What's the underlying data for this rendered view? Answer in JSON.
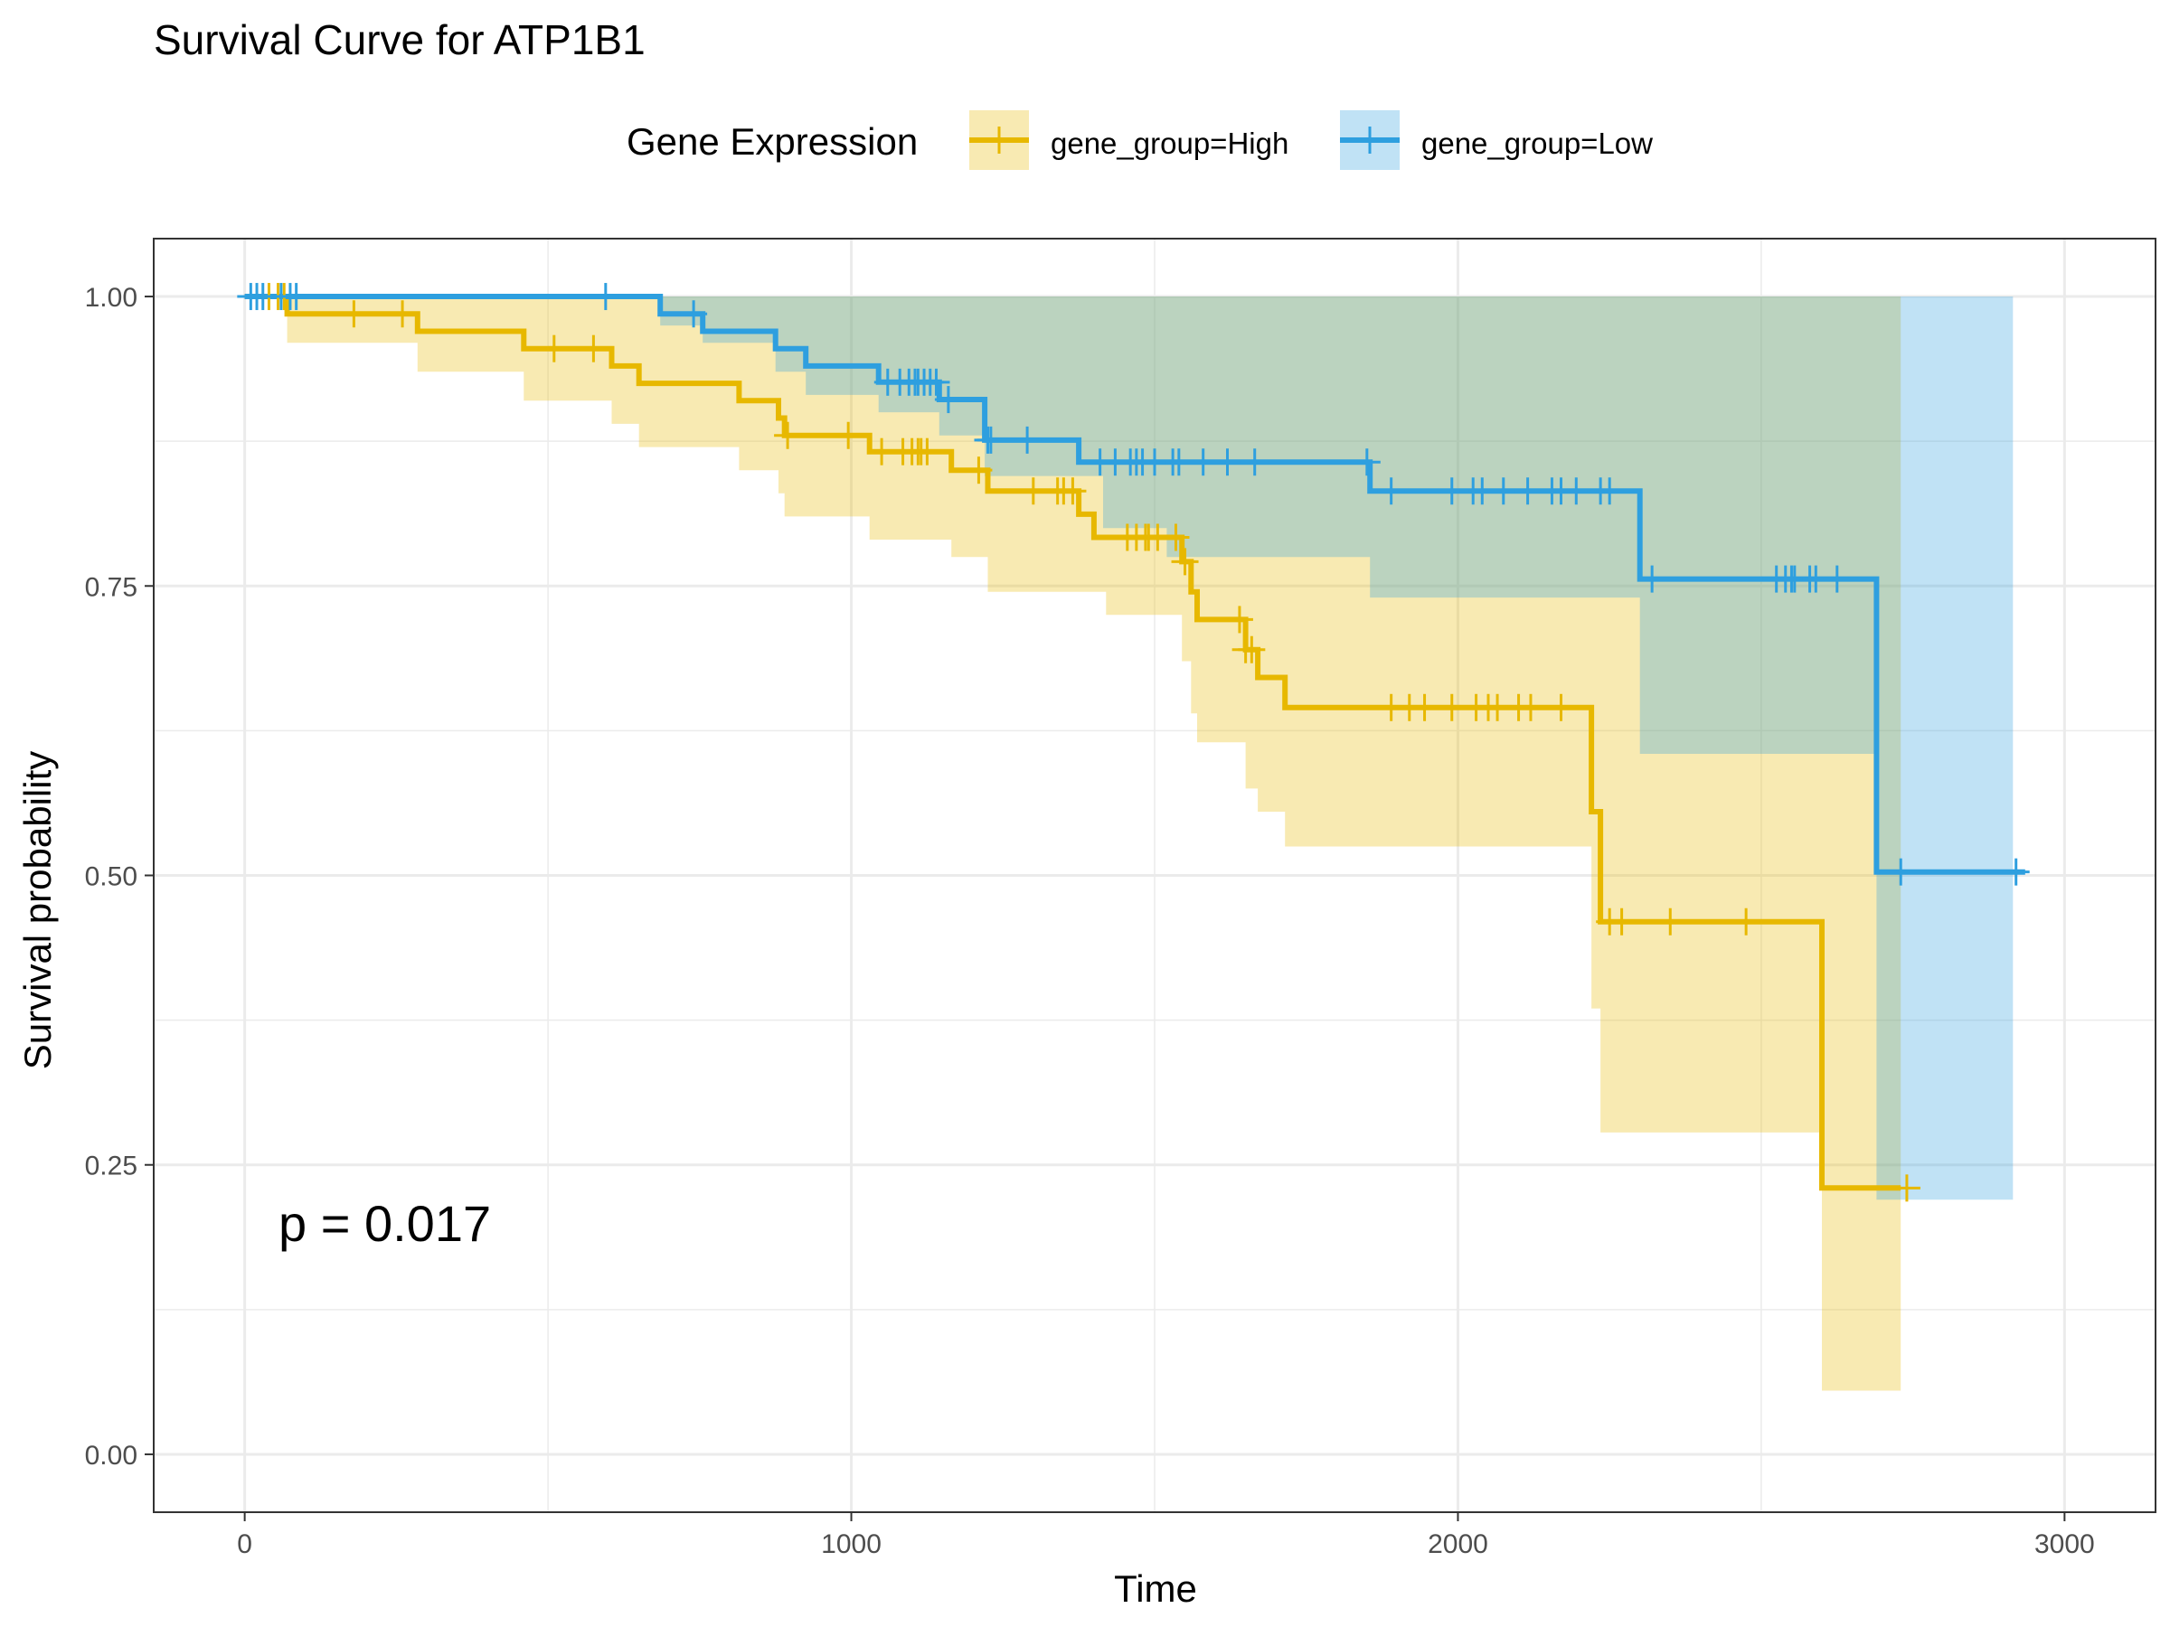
{
  "chart_data": {
    "type": "line",
    "subtype": "kaplan-meier survival curve with confidence bands",
    "title": "Survival Curve for ATP1B1",
    "xlabel": "Time",
    "ylabel": "Survival probability",
    "xlim": [
      -150,
      3150
    ],
    "ylim": [
      -0.05,
      1.05
    ],
    "x_ticks": [
      0,
      1000,
      2000,
      3000
    ],
    "x_tick_labels": [
      "0",
      "1000",
      "2000",
      "3000"
    ],
    "y_ticks": [
      0,
      0.25,
      0.5,
      0.75,
      1.0
    ],
    "y_tick_labels": [
      "0.00",
      "0.25",
      "0.50",
      "0.75",
      "1.00"
    ],
    "grid": true,
    "legend": {
      "title": "Gene Expression",
      "position": "top",
      "entries": [
        "gene_group=High",
        "gene_group=Low"
      ]
    },
    "annotation": "p = 0.017",
    "series": [
      {
        "name": "gene_group=High",
        "color": "#E7B800",
        "steps": [
          [
            0,
            1.0
          ],
          [
            70,
            0.985
          ],
          [
            285,
            0.97
          ],
          [
            460,
            0.955
          ],
          [
            605,
            0.94
          ],
          [
            650,
            0.925
          ],
          [
            815,
            0.91
          ],
          [
            880,
            0.895
          ],
          [
            890,
            0.88
          ],
          [
            1030,
            0.866
          ],
          [
            1165,
            0.85
          ],
          [
            1225,
            0.832
          ],
          [
            1375,
            0.812
          ],
          [
            1400,
            0.792
          ],
          [
            1545,
            0.771
          ],
          [
            1560,
            0.745
          ],
          [
            1570,
            0.721
          ],
          [
            1650,
            0.695
          ],
          [
            1670,
            0.671
          ],
          [
            1715,
            0.645
          ],
          [
            2220,
            0.555
          ],
          [
            2235,
            0.46
          ],
          [
            2600,
            0.23
          ],
          [
            2730,
            0.23
          ]
        ],
        "ci_lower": [
          [
            0,
            1.0
          ],
          [
            70,
            0.96
          ],
          [
            285,
            0.935
          ],
          [
            460,
            0.91
          ],
          [
            605,
            0.89
          ],
          [
            650,
            0.87
          ],
          [
            815,
            0.85
          ],
          [
            880,
            0.83
          ],
          [
            890,
            0.81
          ],
          [
            1030,
            0.79
          ],
          [
            1165,
            0.775
          ],
          [
            1225,
            0.745
          ],
          [
            1420,
            0.725
          ],
          [
            1545,
            0.685
          ],
          [
            1560,
            0.64
          ],
          [
            1570,
            0.615
          ],
          [
            1650,
            0.575
          ],
          [
            1670,
            0.555
          ],
          [
            1715,
            0.525
          ],
          [
            2220,
            0.385
          ],
          [
            2235,
            0.278
          ],
          [
            2600,
            0.055
          ],
          [
            2730,
            0.055
          ]
        ],
        "ci_upper": [
          [
            0,
            1.0
          ],
          [
            2600,
            1.0
          ],
          [
            2730,
            1.0
          ]
        ],
        "censor_x": [
          40,
          55,
          65,
          180,
          260,
          510,
          575,
          895,
          995,
          1050,
          1085,
          1100,
          1110,
          1115,
          1125,
          1210,
          1300,
          1340,
          1350,
          1365,
          1455,
          1470,
          1485,
          1490,
          1505,
          1535,
          1550,
          1640,
          1650,
          1660,
          1890,
          1920,
          1945,
          1990,
          2030,
          2050,
          2065,
          2100,
          2120,
          2170,
          2250,
          2270,
          2350,
          2475,
          2740
        ]
      },
      {
        "name": "gene_group=Low",
        "color": "#2E9FDF",
        "steps": [
          [
            0,
            1.0
          ],
          [
            685,
            0.985
          ],
          [
            755,
            0.97
          ],
          [
            875,
            0.955
          ],
          [
            925,
            0.94
          ],
          [
            1045,
            0.926
          ],
          [
            1145,
            0.911
          ],
          [
            1220,
            0.876
          ],
          [
            1375,
            0.857
          ],
          [
            1855,
            0.832
          ],
          [
            2300,
            0.756
          ],
          [
            2690,
            0.503
          ],
          [
            2935,
            0.503
          ]
        ],
        "ci_lower": [
          [
            0,
            1.0
          ],
          [
            685,
            0.975
          ],
          [
            755,
            0.96
          ],
          [
            875,
            0.935
          ],
          [
            925,
            0.915
          ],
          [
            1045,
            0.9
          ],
          [
            1145,
            0.88
          ],
          [
            1220,
            0.845
          ],
          [
            1415,
            0.8
          ],
          [
            1520,
            0.775
          ],
          [
            1855,
            0.74
          ],
          [
            2300,
            0.605
          ],
          [
            2690,
            0.22
          ],
          [
            2915,
            0.22
          ]
        ],
        "ci_upper": [
          [
            0,
            1.0
          ],
          [
            2915,
            1.0
          ]
        ],
        "censor_x": [
          10,
          20,
          30,
          60,
          75,
          85,
          595,
          740,
          1060,
          1080,
          1095,
          1105,
          1110,
          1120,
          1130,
          1140,
          1160,
          1225,
          1230,
          1290,
          1410,
          1435,
          1460,
          1470,
          1480,
          1500,
          1530,
          1540,
          1580,
          1620,
          1665,
          1850,
          1890,
          1990,
          2025,
          2040,
          2075,
          2115,
          2155,
          2170,
          2195,
          2235,
          2250,
          2320,
          2525,
          2540,
          2550,
          2555,
          2580,
          2590,
          2625,
          2730,
          2920
        ]
      }
    ]
  }
}
